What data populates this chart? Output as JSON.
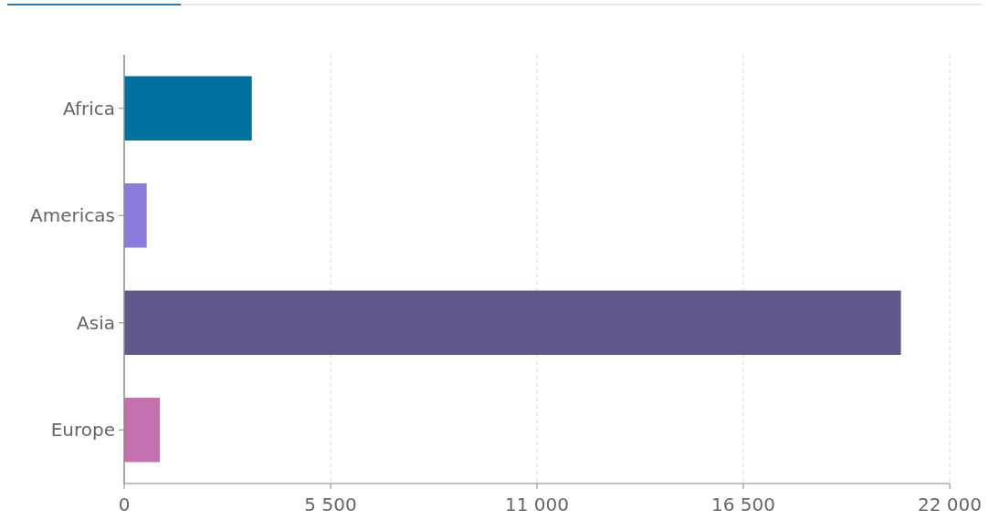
{
  "chart_data": {
    "type": "bar",
    "orientation": "horizontal",
    "categories": [
      "Africa",
      "Americas",
      "Asia",
      "Europe"
    ],
    "values": [
      3400,
      600,
      20700,
      950
    ],
    "colors": [
      "#00709f",
      "#8a7bdc",
      "#605a8c",
      "#c46fae"
    ],
    "xlim": [
      0,
      22000
    ],
    "xticks": [
      0,
      {
        "value": 5500,
        "label": "5 500"
      },
      {
        "value": 11000,
        "label": "11 000"
      },
      {
        "value": 16500,
        "label": "16 500"
      },
      {
        "value": 22000,
        "label": "22 000"
      }
    ],
    "grid": "x"
  }
}
